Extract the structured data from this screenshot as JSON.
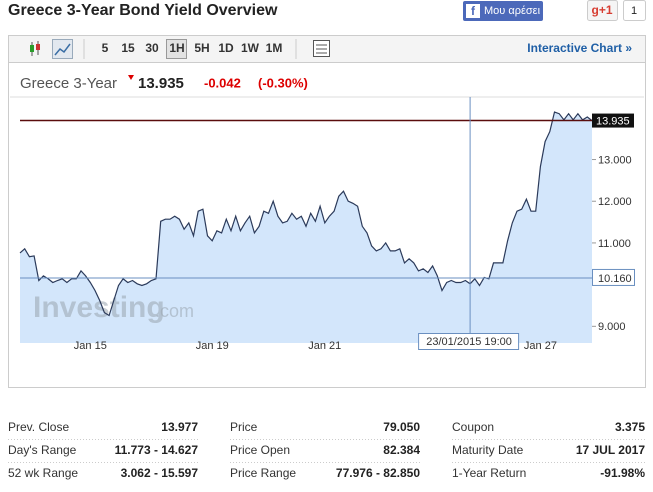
{
  "header": {
    "title": "Greece 3-Year Bond Yield Overview",
    "like_button": "Μου αρέσει",
    "gplus_button": "g+1",
    "gplus_count": "1"
  },
  "toolbar": {
    "intervals": [
      "5",
      "15",
      "30",
      "1H",
      "5H",
      "1D",
      "1W",
      "1M"
    ],
    "selected": 3,
    "link": "Interactive Chart »"
  },
  "quote": {
    "name": "Greece 3-Year",
    "last": "13.935",
    "change": "-0.042",
    "change_pct": "(-0.30%)"
  },
  "chart_data": {
    "type": "area",
    "color": "#2b3a5a",
    "fill_color": "#d3e6fb",
    "last_line_color": "#5a0d0d",
    "values": [
      10.76,
      10.86,
      10.67,
      10.69,
      10.1,
      10.21,
      10.14,
      10.05,
      10.1,
      10.14,
      10.05,
      10.14,
      10.14,
      10.33,
      10.21,
      10.05,
      9.86,
      9.62,
      9.33,
      9.26,
      9.62,
      9.98,
      10.14,
      10.05,
      10.1,
      10.02,
      9.98,
      10.02,
      10.1,
      10.14,
      11.52,
      11.57,
      11.57,
      11.64,
      11.57,
      11.33,
      11.48,
      11.17,
      11.76,
      11.81,
      11.17,
      11.05,
      11.29,
      11.24,
      11.57,
      11.29,
      11.64,
      11.29,
      11.48,
      11.64,
      11.24,
      11.4,
      11.76,
      11.71,
      12.0,
      11.64,
      11.48,
      11.52,
      11.71,
      11.57,
      11.64,
      11.4,
      11.71,
      11.52,
      11.88,
      11.48,
      11.64,
      11.76,
      12.12,
      12.24,
      12.0,
      11.95,
      11.88,
      11.4,
      11.24,
      10.93,
      10.81,
      10.86,
      11.0,
      10.81,
      10.81,
      10.86,
      10.52,
      10.62,
      10.52,
      10.33,
      10.38,
      10.29,
      10.45,
      10.21,
      9.86,
      10.05,
      10.1,
      10.05,
      10.05,
      10.1,
      10.02,
      10.14,
      9.98,
      10.17,
      10.14,
      10.52,
      10.52,
      10.52,
      11.05,
      11.48,
      11.76,
      11.81,
      12.05,
      11.76,
      11.76,
      12.83,
      13.43,
      13.67,
      14.14,
      14.1,
      13.95,
      14.1,
      13.95,
      14.1,
      13.95,
      14.02,
      13.935
    ],
    "last_label": "13.935",
    "xlim": [
      0,
      122
    ],
    "xticks": [
      {
        "value": 15,
        "label": "Jan 15"
      },
      {
        "value": 41,
        "label": "Jan 19"
      },
      {
        "value": 65,
        "label": "Jan 21"
      },
      {
        "value": 111,
        "label": "Jan 27"
      }
    ],
    "ylim": [
      8.6,
      14.5
    ],
    "yticks": [
      {
        "value": 9,
        "label": "9.000"
      },
      {
        "value": 11,
        "label": "11.000"
      },
      {
        "value": 12,
        "label": "12.000"
      },
      {
        "value": 13,
        "label": "13.000"
      }
    ],
    "crosshair": {
      "x": {
        "value": 96,
        "label": "23/01/2015 19:00"
      },
      "y": {
        "value": 10.16,
        "label": "10.160"
      }
    },
    "watermark": [
      "Investing",
      ".com"
    ]
  },
  "stats": [
    [
      {
        "label": "Prev. Close",
        "value": "13.977"
      },
      {
        "label": "Day's Range",
        "value": "11.773 - 14.627"
      },
      {
        "label": "52 wk Range",
        "value": "3.062 - 15.597"
      }
    ],
    [
      {
        "label": "Price",
        "value": "79.050"
      },
      {
        "label": "Price Open",
        "value": "82.384"
      },
      {
        "label": "Price Range",
        "value": "77.976 - 82.850"
      }
    ],
    [
      {
        "label": "Coupon",
        "value": "3.375"
      },
      {
        "label": "Maturity Date",
        "value": "17 JUL 2017"
      },
      {
        "label": "1-Year Return",
        "value": "-91.98%"
      }
    ]
  ]
}
